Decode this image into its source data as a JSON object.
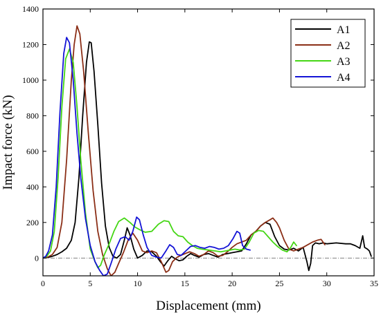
{
  "chart_data": {
    "type": "line",
    "title": "",
    "xlabel": "Displacement (mm)",
    "ylabel": "Impact force (kN)",
    "xlim": [
      0,
      35
    ],
    "ylim": [
      -100,
      1400
    ],
    "xticks": [
      0,
      5,
      10,
      15,
      20,
      25,
      30,
      35
    ],
    "yticks": [
      0,
      200,
      400,
      600,
      800,
      1000,
      1200,
      1400
    ],
    "grid": false,
    "legend_position": "top-right",
    "zero_line": true,
    "series": [
      {
        "name": "A1",
        "color": "#000000",
        "points": [
          [
            0,
            0
          ],
          [
            0.5,
            3
          ],
          [
            1,
            10
          ],
          [
            1.5,
            20
          ],
          [
            2,
            35
          ],
          [
            2.5,
            55
          ],
          [
            3,
            100
          ],
          [
            3.4,
            200
          ],
          [
            3.8,
            450
          ],
          [
            4.2,
            800
          ],
          [
            4.6,
            1100
          ],
          [
            4.9,
            1215
          ],
          [
            5.1,
            1210
          ],
          [
            5.4,
            1050
          ],
          [
            5.8,
            750
          ],
          [
            6.2,
            420
          ],
          [
            6.6,
            180
          ],
          [
            7,
            60
          ],
          [
            7.4,
            10
          ],
          [
            7.8,
            0
          ],
          [
            8.2,
            20
          ],
          [
            8.6,
            100
          ],
          [
            8.9,
            170
          ],
          [
            9.2,
            130
          ],
          [
            9.6,
            50
          ],
          [
            10,
            0
          ],
          [
            10.5,
            15
          ],
          [
            11,
            40
          ],
          [
            11.5,
            35
          ],
          [
            12,
            10
          ],
          [
            12.4,
            -20
          ],
          [
            12.8,
            -45
          ],
          [
            13.2,
            -15
          ],
          [
            13.6,
            10
          ],
          [
            14,
            -5
          ],
          [
            14.4,
            -15
          ],
          [
            14.8,
            -10
          ],
          [
            15.2,
            10
          ],
          [
            15.6,
            25
          ],
          [
            16,
            15
          ],
          [
            16.5,
            5
          ],
          [
            17,
            20
          ],
          [
            17.5,
            25
          ],
          [
            18,
            15
          ],
          [
            18.5,
            5
          ],
          [
            19,
            20
          ],
          [
            19.5,
            25
          ],
          [
            20,
            30
          ],
          [
            20.5,
            35
          ],
          [
            21,
            40
          ],
          [
            21.5,
            80
          ],
          [
            22,
            130
          ],
          [
            22.5,
            150
          ],
          [
            23,
            180
          ],
          [
            23.5,
            200
          ],
          [
            24,
            190
          ],
          [
            24.5,
            120
          ],
          [
            25,
            70
          ],
          [
            25.5,
            50
          ],
          [
            26,
            45
          ],
          [
            26.5,
            55
          ],
          [
            27,
            40
          ],
          [
            27.5,
            60
          ],
          [
            27.9,
            -20
          ],
          [
            28.1,
            -70
          ],
          [
            28.3,
            -30
          ],
          [
            28.5,
            70
          ],
          [
            28.8,
            85
          ],
          [
            29.2,
            80
          ],
          [
            29.6,
            85
          ],
          [
            30,
            80
          ],
          [
            31,
            85
          ],
          [
            32,
            80
          ],
          [
            32.5,
            80
          ],
          [
            33,
            70
          ],
          [
            33.5,
            55
          ],
          [
            33.8,
            125
          ],
          [
            34,
            60
          ],
          [
            34.3,
            50
          ],
          [
            34.5,
            40
          ],
          [
            34.7,
            10
          ]
        ]
      },
      {
        "name": "A2",
        "color": "#8b2e16",
        "points": [
          [
            0,
            0
          ],
          [
            0.5,
            5
          ],
          [
            1,
            20
          ],
          [
            1.5,
            60
          ],
          [
            2,
            200
          ],
          [
            2.5,
            550
          ],
          [
            3,
            1000
          ],
          [
            3.3,
            1200
          ],
          [
            3.6,
            1305
          ],
          [
            3.9,
            1260
          ],
          [
            4.3,
            1050
          ],
          [
            4.8,
            700
          ],
          [
            5.3,
            380
          ],
          [
            5.8,
            150
          ],
          [
            6.3,
            20
          ],
          [
            6.8,
            -60
          ],
          [
            7.2,
            -100
          ],
          [
            7.6,
            -80
          ],
          [
            8,
            -30
          ],
          [
            8.5,
            30
          ],
          [
            9,
            100
          ],
          [
            9.5,
            140
          ],
          [
            10,
            100
          ],
          [
            10.5,
            40
          ],
          [
            11,
            30
          ],
          [
            11.5,
            40
          ],
          [
            12,
            30
          ],
          [
            12.5,
            -20
          ],
          [
            13,
            -80
          ],
          [
            13.3,
            -70
          ],
          [
            13.7,
            -20
          ],
          [
            14.2,
            5
          ],
          [
            14.8,
            20
          ],
          [
            15.5,
            35
          ],
          [
            16,
            25
          ],
          [
            16.5,
            10
          ],
          [
            17,
            20
          ],
          [
            17.5,
            40
          ],
          [
            18,
            30
          ],
          [
            18.5,
            10
          ],
          [
            19,
            15
          ],
          [
            19.5,
            35
          ],
          [
            20,
            60
          ],
          [
            20.5,
            80
          ],
          [
            21,
            90
          ],
          [
            21.5,
            100
          ],
          [
            22,
            130
          ],
          [
            22.5,
            150
          ],
          [
            23,
            180
          ],
          [
            23.5,
            200
          ],
          [
            24,
            215
          ],
          [
            24.3,
            225
          ],
          [
            24.7,
            200
          ],
          [
            25,
            170
          ],
          [
            25.5,
            100
          ],
          [
            26,
            50
          ],
          [
            26.5,
            40
          ],
          [
            27,
            50
          ],
          [
            27.5,
            60
          ],
          [
            28,
            75
          ],
          [
            28.5,
            90
          ],
          [
            29,
            100
          ],
          [
            29.4,
            105
          ],
          [
            29.8,
            75
          ]
        ]
      },
      {
        "name": "A3",
        "color": "#44d614",
        "points": [
          [
            0,
            0
          ],
          [
            0.4,
            10
          ],
          [
            0.8,
            40
          ],
          [
            1.2,
            150
          ],
          [
            1.6,
            450
          ],
          [
            2,
            850
          ],
          [
            2.4,
            1120
          ],
          [
            2.8,
            1175
          ],
          [
            3.2,
            1100
          ],
          [
            3.6,
            850
          ],
          [
            4,
            550
          ],
          [
            4.5,
            250
          ],
          [
            5,
            50
          ],
          [
            5.5,
            -20
          ],
          [
            5.8,
            -55
          ],
          [
            6.1,
            -40
          ],
          [
            6.5,
            20
          ],
          [
            7,
            80
          ],
          [
            7.5,
            150
          ],
          [
            8,
            205
          ],
          [
            8.6,
            225
          ],
          [
            9.2,
            200
          ],
          [
            9.7,
            175
          ],
          [
            10.2,
            160
          ],
          [
            10.8,
            145
          ],
          [
            11.5,
            150
          ],
          [
            12.2,
            190
          ],
          [
            12.8,
            210
          ],
          [
            13.3,
            205
          ],
          [
            13.8,
            150
          ],
          [
            14.3,
            125
          ],
          [
            14.8,
            120
          ],
          [
            15.3,
            90
          ],
          [
            15.8,
            70
          ],
          [
            16.3,
            55
          ],
          [
            16.8,
            50
          ],
          [
            17.5,
            45
          ],
          [
            18.2,
            40
          ],
          [
            18.8,
            35
          ],
          [
            19.3,
            40
          ],
          [
            19.8,
            45
          ],
          [
            20.3,
            50
          ],
          [
            20.8,
            45
          ],
          [
            21.3,
            50
          ],
          [
            21.8,
            90
          ],
          [
            22.3,
            140
          ],
          [
            22.8,
            155
          ],
          [
            23.3,
            150
          ],
          [
            23.8,
            120
          ],
          [
            24.3,
            90
          ],
          [
            24.8,
            65
          ],
          [
            25.3,
            45
          ],
          [
            25.8,
            35
          ],
          [
            26.2,
            60
          ],
          [
            26.5,
            90
          ],
          [
            26.8,
            70
          ]
        ]
      },
      {
        "name": "A4",
        "color": "#1313d6",
        "points": [
          [
            0,
            0
          ],
          [
            0.3,
            10
          ],
          [
            0.6,
            40
          ],
          [
            1,
            130
          ],
          [
            1.4,
            400
          ],
          [
            1.8,
            820
          ],
          [
            2.2,
            1150
          ],
          [
            2.5,
            1240
          ],
          [
            2.8,
            1210
          ],
          [
            3.2,
            1000
          ],
          [
            3.6,
            700
          ],
          [
            4,
            450
          ],
          [
            4.5,
            220
          ],
          [
            5,
            70
          ],
          [
            5.5,
            -20
          ],
          [
            6,
            -70
          ],
          [
            6.4,
            -100
          ],
          [
            6.8,
            -90
          ],
          [
            7.2,
            -30
          ],
          [
            7.7,
            50
          ],
          [
            8.2,
            110
          ],
          [
            8.7,
            120
          ],
          [
            9.1,
            100
          ],
          [
            9.5,
            150
          ],
          [
            9.9,
            230
          ],
          [
            10.2,
            215
          ],
          [
            10.6,
            130
          ],
          [
            11,
            60
          ],
          [
            11.5,
            15
          ],
          [
            12,
            5
          ],
          [
            12.5,
            0
          ],
          [
            13,
            40
          ],
          [
            13.4,
            75
          ],
          [
            13.8,
            60
          ],
          [
            14.2,
            20
          ],
          [
            14.6,
            15
          ],
          [
            15.1,
            40
          ],
          [
            15.6,
            65
          ],
          [
            16.1,
            70
          ],
          [
            16.6,
            60
          ],
          [
            17.1,
            55
          ],
          [
            17.6,
            65
          ],
          [
            18.1,
            60
          ],
          [
            18.6,
            50
          ],
          [
            19.1,
            55
          ],
          [
            19.6,
            70
          ],
          [
            20.1,
            110
          ],
          [
            20.5,
            150
          ],
          [
            20.8,
            140
          ],
          [
            21.1,
            70
          ],
          [
            21.5,
            50
          ],
          [
            21.9,
            45
          ]
        ]
      }
    ]
  }
}
